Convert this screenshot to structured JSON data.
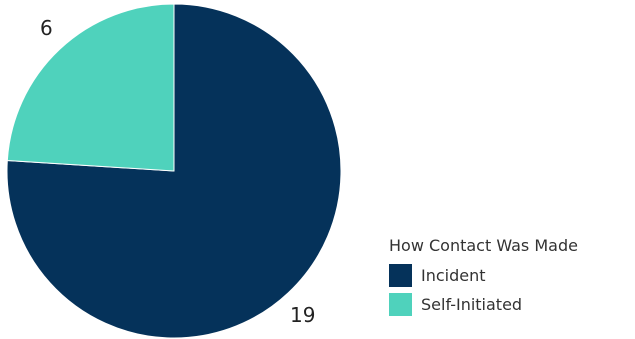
{
  "chart_data": {
    "type": "pie",
    "categories": [
      "Incident",
      "Self-Initiated"
    ],
    "values": [
      19,
      6
    ],
    "colors": [
      "#05325A",
      "#4FD2BC"
    ],
    "legend_title": "How Contact Was Made",
    "legend_position": "bottom-right"
  }
}
